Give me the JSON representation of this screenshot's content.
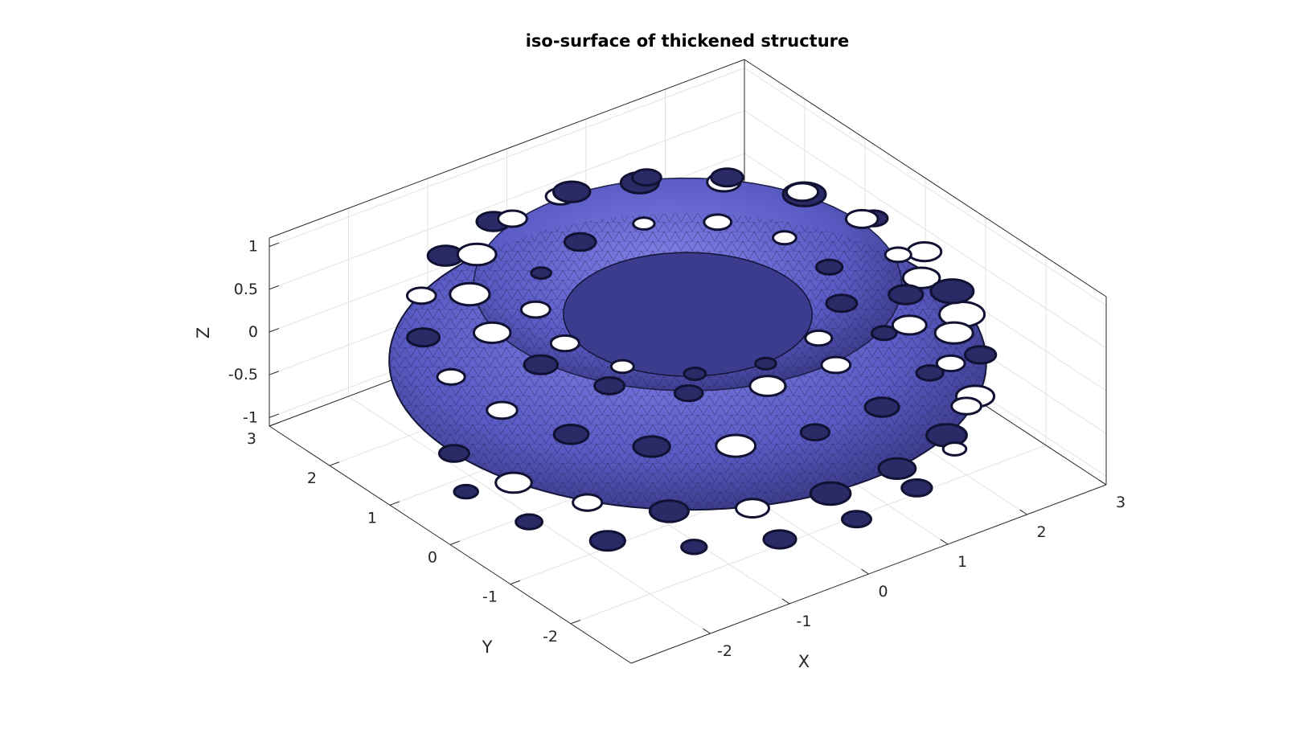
{
  "chart_data": {
    "type": "3d-surface",
    "title": "iso-surface of thickened structure",
    "xlabel": "X",
    "ylabel": "Y",
    "zlabel": "Z",
    "xlim": [
      -3,
      3
    ],
    "ylim": [
      -3,
      3
    ],
    "zlim": [
      -1.1,
      1.1
    ],
    "xticks": [
      "-2",
      "-1",
      "0",
      "1",
      "2",
      "3"
    ],
    "yticks": [
      "-2",
      "-1",
      "0",
      "1",
      "2",
      "3"
    ],
    "zticks": [
      "-1",
      "-0.5",
      "0",
      "0.5",
      "1"
    ],
    "surface": {
      "shape": "torus",
      "major_radius": 2,
      "minor_radius": 1,
      "structure": "perforated lattice with elliptical holes",
      "face_color": "#6b6bd6",
      "edge_color": "#1a1a3a"
    },
    "grid": true,
    "box": true
  }
}
